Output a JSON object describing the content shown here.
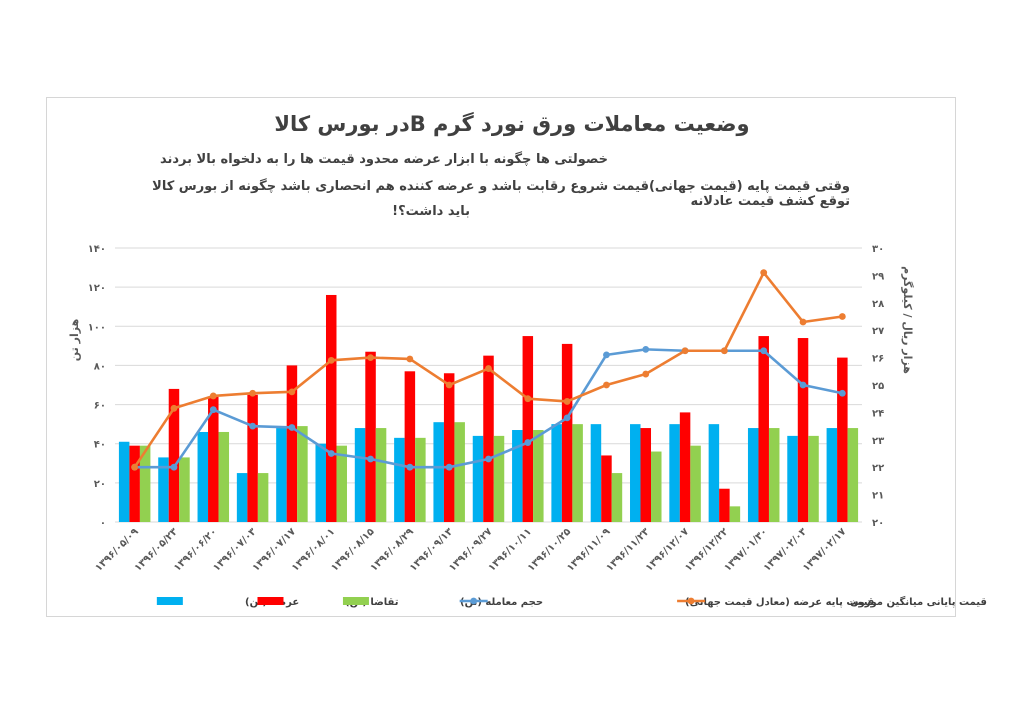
{
  "header": {
    "title": "وضعیت معاملات ورق نورد گرم  Bدر بورس کالا",
    "subtitle_1": "خصولتی ها چگونه با ابزار  عرضه محدود قیمت ها را به دلخواه بالا بردند",
    "subtitle_2": "وقتی قیمت پایه (قیمت جهانی)قیمت شروع رقابت باشد و عرضه کننده هم انحصاری باشد چگونه از بورس کالا توقع کشف قیمت عادلانه",
    "subtitle_3": "باید داشت؟!"
  },
  "chart_data": {
    "type": "bar",
    "title": "وضعیت معاملات ورق نورد گرم  Bدر بورس کالا",
    "ylabel": "هزار تن",
    "y2label": "هزار ریال / کیلوگرم",
    "ylim": [
      0,
      140
    ],
    "y2lim": [
      20,
      30
    ],
    "yticks": [
      "0",
      "20",
      "40",
      "60",
      "80",
      "100",
      "120",
      "140"
    ],
    "y2ticks": [
      "20",
      "21",
      "22",
      "23",
      "24",
      "25",
      "26",
      "27",
      "28",
      "29",
      "30"
    ],
    "categories": [
      "1396/05/09",
      "1396/05/23",
      "1396/06/20",
      "1396/07/03",
      "1396/07/17",
      "1396/08/01",
      "1396/08/15",
      "1396/08/29",
      "1396/09/13",
      "1396/09/27",
      "1396/10/11",
      "1396/10/25",
      "1396/11/09",
      "1396/11/23",
      "1396/12/07",
      "1396/12/22",
      "1397/01/30",
      "1397/02/03",
      "1397/02/17"
    ],
    "series": [
      {
        "name": "عرضه (تن)",
        "kind": "bar",
        "axis": "left",
        "color": "#00b0f0",
        "values": [
          41,
          33,
          46,
          25,
          48,
          40,
          48,
          43,
          51,
          44,
          47,
          50,
          50,
          50,
          50,
          50,
          48,
          44,
          48
        ]
      },
      {
        "name": "تقاضا (تن)",
        "kind": "bar",
        "axis": "left",
        "color": "#ff0000",
        "values": [
          39,
          68,
          64,
          65,
          80,
          116,
          87,
          77,
          76,
          85,
          95,
          91,
          34,
          48,
          56,
          17,
          95,
          94,
          84
        ]
      },
      {
        "name": "حجم معامله (تن)",
        "kind": "bar",
        "axis": "left",
        "color": "#92d050",
        "values": [
          39,
          33,
          46,
          25,
          49,
          39,
          48,
          43,
          51,
          44,
          47,
          50,
          25,
          36,
          39,
          8,
          48,
          44,
          48
        ]
      },
      {
        "name": "قیمت پایه عرضه (معادل قیمت جهانی)",
        "kind": "line",
        "axis": "right",
        "color": "#5b9bd5",
        "values": [
          22.0,
          22.0,
          24.1,
          23.5,
          23.45,
          22.5,
          22.3,
          22.0,
          22.0,
          22.3,
          22.9,
          23.8,
          26.1,
          26.3,
          26.25,
          26.25,
          26.25,
          25.0,
          24.7
        ]
      },
      {
        "name": "قیمت پایانی میانگین موزون",
        "kind": "line",
        "axis": "right",
        "color": "#ed7d31",
        "values": [
          22.0,
          24.15,
          24.6,
          24.7,
          24.75,
          25.9,
          26.0,
          25.95,
          25.0,
          25.6,
          24.5,
          24.4,
          25.0,
          25.4,
          26.25,
          26.25,
          29.1,
          27.3,
          27.5
        ]
      }
    ],
    "legend_position": "bottom",
    "grid": true
  }
}
